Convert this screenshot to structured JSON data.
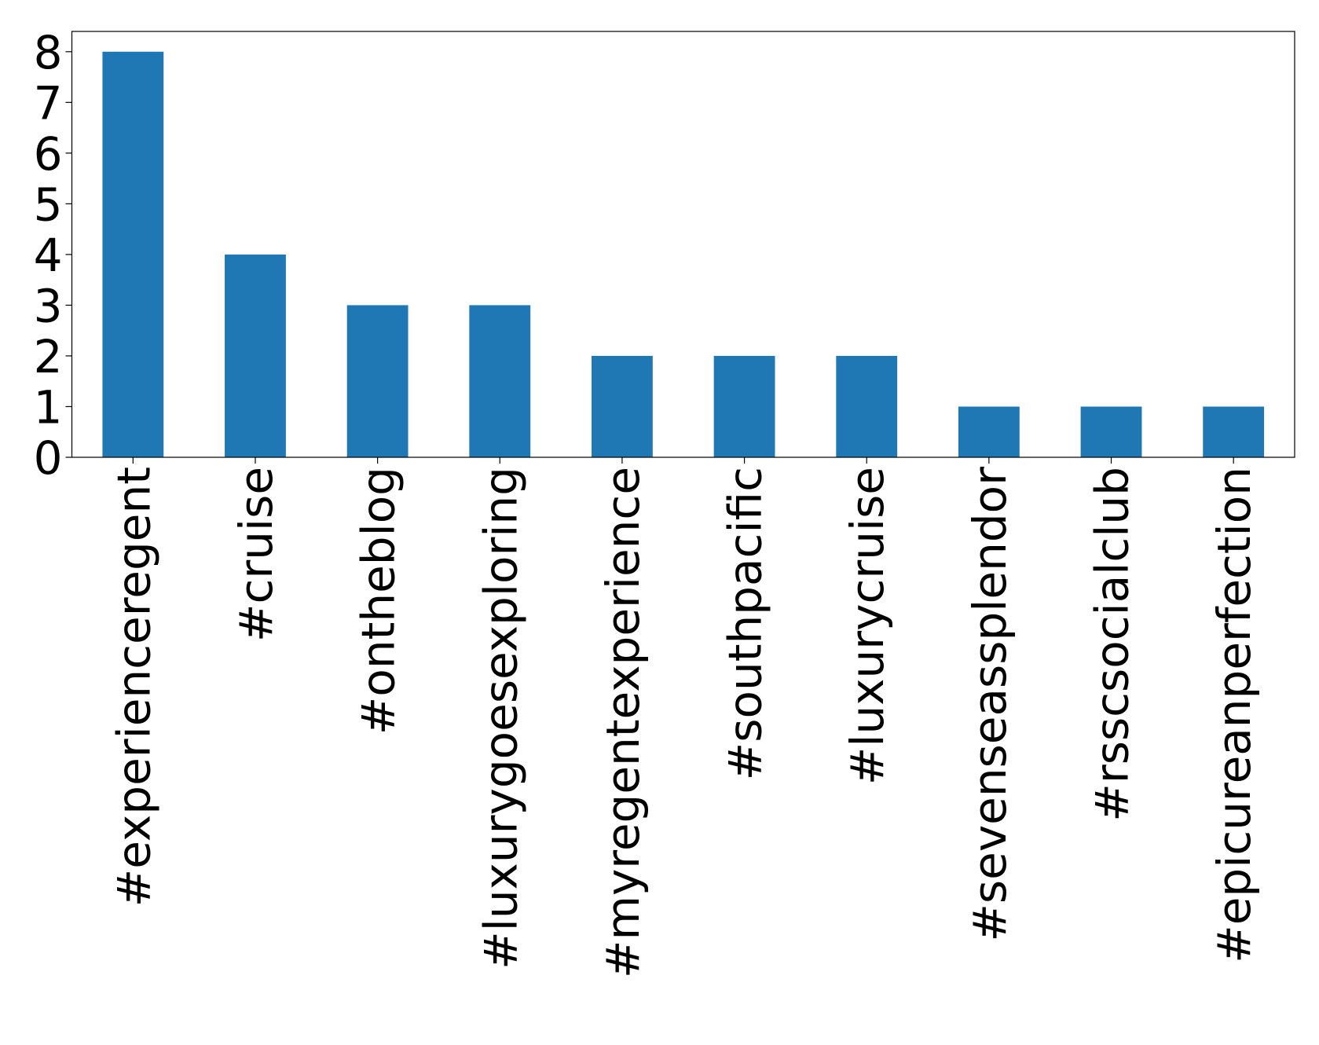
{
  "chart_data": {
    "type": "bar",
    "categories": [
      "#experienceregent",
      "#cruise",
      "#ontheblog",
      "#luxurygoesexploring",
      "#myregentexperience",
      "#southpacific",
      "#luxurycruise",
      "#sevenseassplendor",
      "#rsscsocialclub",
      "#epicureanperfection"
    ],
    "values": [
      8,
      4,
      3,
      3,
      2,
      2,
      2,
      1,
      1,
      1
    ],
    "color": "#1f77b4",
    "ylim": [
      0,
      8.4
    ],
    "yticks": [
      0,
      1,
      2,
      3,
      4,
      5,
      6,
      7,
      8
    ],
    "grid": false
  }
}
